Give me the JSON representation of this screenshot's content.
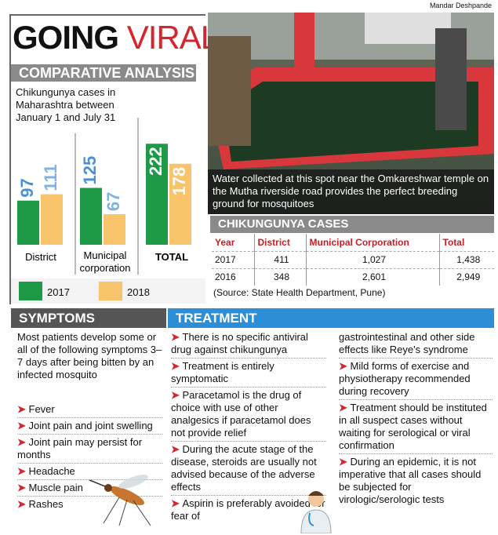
{
  "credit": "Mandar Deshpande",
  "title": {
    "word1": "GOING",
    "word2": "VIRAL"
  },
  "comparative": {
    "band": "COMPARATIVE ANALYSIS",
    "caption": "Chikungunya cases in Maharashtra between January 1 and July 31",
    "legend": {
      "y2017": "2017",
      "y2018": "2018"
    },
    "colors": {
      "y2017": "#1e9a47",
      "y2018": "#f7c46c",
      "value2017": "#4a90d9",
      "value2018": "#7fb2e5"
    }
  },
  "chart_data": {
    "type": "bar",
    "categories": [
      "District",
      "Municipal corporation",
      "TOTAL"
    ],
    "series": [
      {
        "name": "2017",
        "values": [
          97,
          125,
          222
        ]
      },
      {
        "name": "2018",
        "values": [
          111,
          67,
          178
        ]
      }
    ],
    "title": "Chikungunya cases in Maharashtra between January 1 and July 31"
  },
  "photo": {
    "caption": "Water collected at this spot near the Omkareshwar temple on the Mutha riverside road provides the perfect breeding ground for mosquitoes"
  },
  "cases_table": {
    "band": "CHIKUNGUNYA CASES",
    "headers": [
      "Year",
      "District",
      "Municipal Corporation",
      "Total"
    ],
    "rows": [
      [
        "2017",
        "411",
        "1,027",
        "1,438"
      ],
      [
        "2016",
        "348",
        "2,601",
        "2,949"
      ]
    ],
    "source": "(Source: State Health Department, Pune)"
  },
  "symptoms": {
    "band": "SYMPTOMS",
    "intro": "Most patients develop some or all of the following symptoms 3–7 days after being bitten by an infected mosquito",
    "items": [
      "Fever",
      "Joint pain and joint swelling",
      "Joint pain may persist for months",
      "Headache",
      "Muscle pain",
      "Rashes"
    ]
  },
  "treatment": {
    "band": "TREATMENT",
    "col1": [
      "There is no specific antiviral drug against chikungunya",
      "Treatment is entirely symptomatic",
      "Paracetamol is the drug of choice with use of other analgesics if paracetamol does not provide relief",
      "During the acute stage of the disease, steroids are usually not advised because of the adverse effects",
      "Aspirin is preferably avoided for fear of"
    ],
    "col2_lead": "gastrointestinal and other side effects like Reye's syndrome",
    "col2": [
      "Mild forms of exercise and physiotherapy recommended during recovery",
      "Treatment should be instituted in all suspect cases without waiting for serological or viral confirmation",
      "During an epidemic, it is not imperative that all cases should be subjected for virologic/serologic tests"
    ]
  }
}
